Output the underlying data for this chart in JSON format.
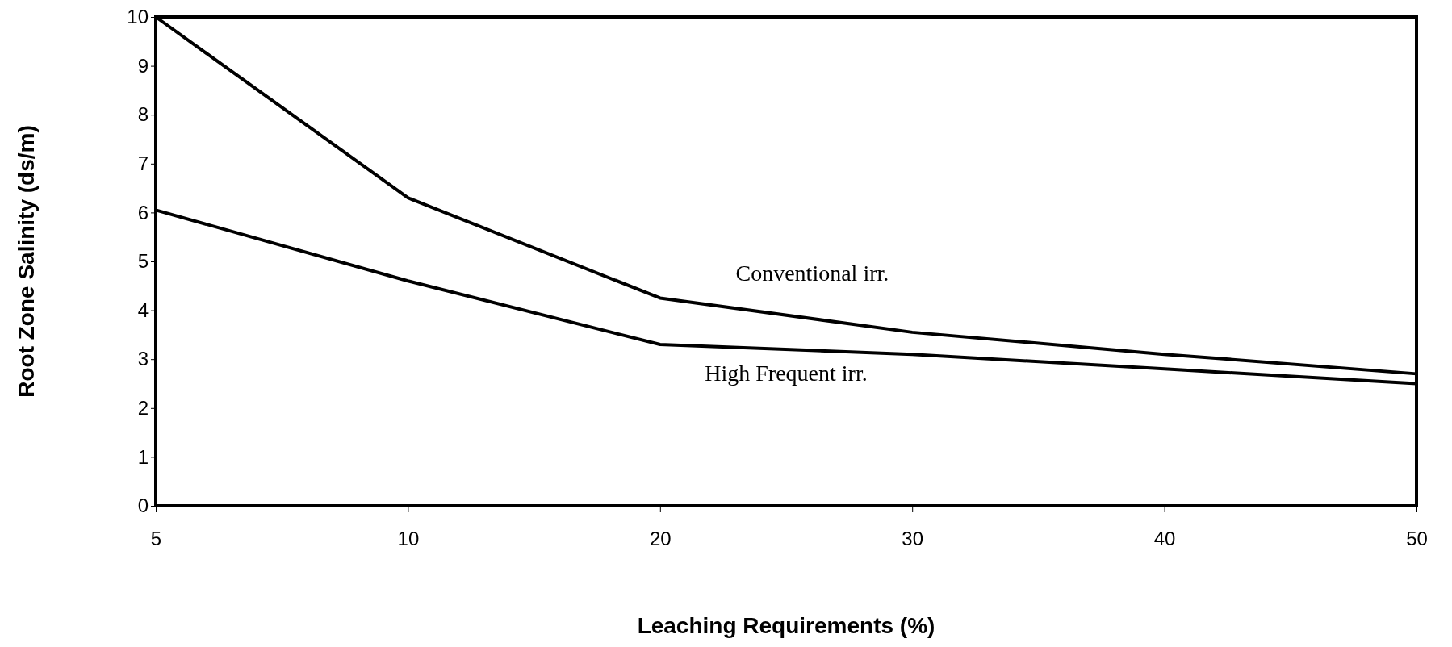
{
  "chart_data": {
    "type": "line",
    "xlabel": "Leaching Requirements (%)",
    "ylabel": "Root Zone Salinity (ds/m)",
    "categories": [
      "5",
      "10",
      "20",
      "30",
      "40",
      "50"
    ],
    "ylim": [
      0,
      10
    ],
    "yticks": [
      0,
      1,
      2,
      3,
      4,
      5,
      6,
      7,
      8,
      9,
      10
    ],
    "grid": false,
    "legend": false,
    "marker": "none",
    "line_style": "solid",
    "series": [
      {
        "name": "Conventional irr.",
        "color": "#000000",
        "values": [
          10,
          6.3,
          4.25,
          3.55,
          3.1,
          2.7
        ]
      },
      {
        "name": "High Frequent irr.",
        "color": "#000000",
        "values": [
          6.05,
          4.6,
          3.3,
          3.1,
          2.8,
          2.5
        ]
      }
    ]
  }
}
